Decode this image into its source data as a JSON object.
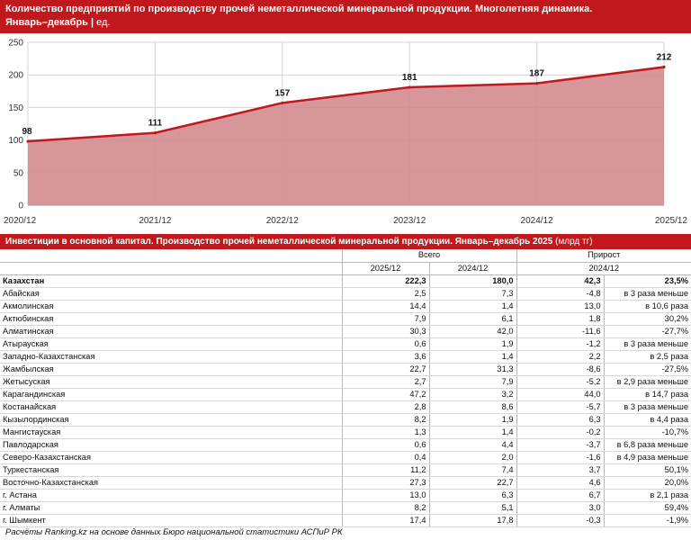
{
  "chart_header": {
    "title": "Количество предприятий по производству прочей неметаллической минеральной продукции. Многолетняя динамика.",
    "subtitle": "Январь–декабрь",
    "unit": "ед."
  },
  "chart_data": {
    "type": "area",
    "title": "Количество предприятий по производству прочей неметаллической минеральной продукции. Многолетняя динамика. Январь–декабрь | ед.",
    "categories": [
      "2020/12",
      "2021/12",
      "2022/12",
      "2023/12",
      "2024/12",
      "2025/12"
    ],
    "values": [
      98,
      111,
      157,
      181,
      187,
      212
    ],
    "data_labels": [
      "98",
      "111",
      "157",
      "181",
      "187",
      "212"
    ],
    "yticks": [
      "0",
      "50",
      "100",
      "150",
      "200",
      "250"
    ],
    "ylim": [
      0,
      250
    ],
    "grid": "horizontal and vertical",
    "colors": {
      "line": "#c0181c",
      "fill": "#d38b8f"
    }
  },
  "table": {
    "title": "Инвестиции в основной капитал. Производство прочей неметаллической минеральной продукции. Январь–декабрь 2025",
    "unit": "(млрд тг)",
    "group_total": "Всего",
    "group_growth": "Прирост",
    "col_2025": "2025/12",
    "col_2024": "2024/12",
    "col_growth_period": "2024/12",
    "rows": [
      {
        "name": "Казахстан",
        "v2025": "222,3",
        "v2024": "180,0",
        "abs": "42,3",
        "rel": "23,5%",
        "bold": true
      },
      {
        "name": "Абайская",
        "v2025": "2,5",
        "v2024": "7,3",
        "abs": "-4,8",
        "rel": "в 3 раза меньше"
      },
      {
        "name": "Акмолинская",
        "v2025": "14,4",
        "v2024": "1,4",
        "abs": "13,0",
        "rel": "в 10,6 раза"
      },
      {
        "name": "Актюбинская",
        "v2025": "7,9",
        "v2024": "6,1",
        "abs": "1,8",
        "rel": "30,2%"
      },
      {
        "name": "Алматинская",
        "v2025": "30,3",
        "v2024": "42,0",
        "abs": "-11,6",
        "rel": "-27,7%"
      },
      {
        "name": "Атырауская",
        "v2025": "0,6",
        "v2024": "1,9",
        "abs": "-1,2",
        "rel": "в 3 раза меньше"
      },
      {
        "name": "Западно-Казахстанская",
        "v2025": "3,6",
        "v2024": "1,4",
        "abs": "2,2",
        "rel": "в 2,5 раза"
      },
      {
        "name": "Жамбылская",
        "v2025": "22,7",
        "v2024": "31,3",
        "abs": "-8,6",
        "rel": "-27,5%"
      },
      {
        "name": "Жетысуская",
        "v2025": "2,7",
        "v2024": "7,9",
        "abs": "-5,2",
        "rel": "в 2,9 раза меньше"
      },
      {
        "name": "Карагандинская",
        "v2025": "47,2",
        "v2024": "3,2",
        "abs": "44,0",
        "rel": "в 14,7 раза"
      },
      {
        "name": "Костанайская",
        "v2025": "2,8",
        "v2024": "8,6",
        "abs": "-5,7",
        "rel": "в 3 раза меньше"
      },
      {
        "name": "Кызылординская",
        "v2025": "8,2",
        "v2024": "1,9",
        "abs": "6,3",
        "rel": "в 4,4 раза"
      },
      {
        "name": "Мангистауская",
        "v2025": "1,3",
        "v2024": "1,4",
        "abs": "-0,2",
        "rel": "-10,7%"
      },
      {
        "name": "Павлодарская",
        "v2025": "0,6",
        "v2024": "4,4",
        "abs": "-3,7",
        "rel": "в 6,8 раза меньше"
      },
      {
        "name": "Северо-Казахстанская",
        "v2025": "0,4",
        "v2024": "2,0",
        "abs": "-1,6",
        "rel": "в 4,9 раза меньше"
      },
      {
        "name": "Туркестанская",
        "v2025": "11,2",
        "v2024": "7,4",
        "abs": "3,7",
        "rel": "50,1%"
      },
      {
        "name": "Восточно-Казахстанская",
        "v2025": "27,3",
        "v2024": "22,7",
        "abs": "4,6",
        "rel": "20,0%"
      },
      {
        "name": "г. Астана",
        "v2025": "13,0",
        "v2024": "6,3",
        "abs": "6,7",
        "rel": "в 2,1 раза"
      },
      {
        "name": "г. Алматы",
        "v2025": "8,2",
        "v2024": "5,1",
        "abs": "3,0",
        "rel": "59,4%"
      },
      {
        "name": "г. Шымкент",
        "v2025": "17,4",
        "v2024": "17,8",
        "abs": "-0,3",
        "rel": "-1,9%"
      }
    ]
  },
  "footnote": "Расчёты Ranking.kz на основе данных Бюро национальной статистики АСПиР РК"
}
